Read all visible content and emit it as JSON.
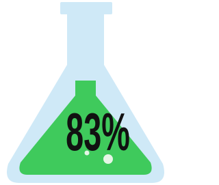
{
  "flask": {
    "label": "83%"
  }
}
